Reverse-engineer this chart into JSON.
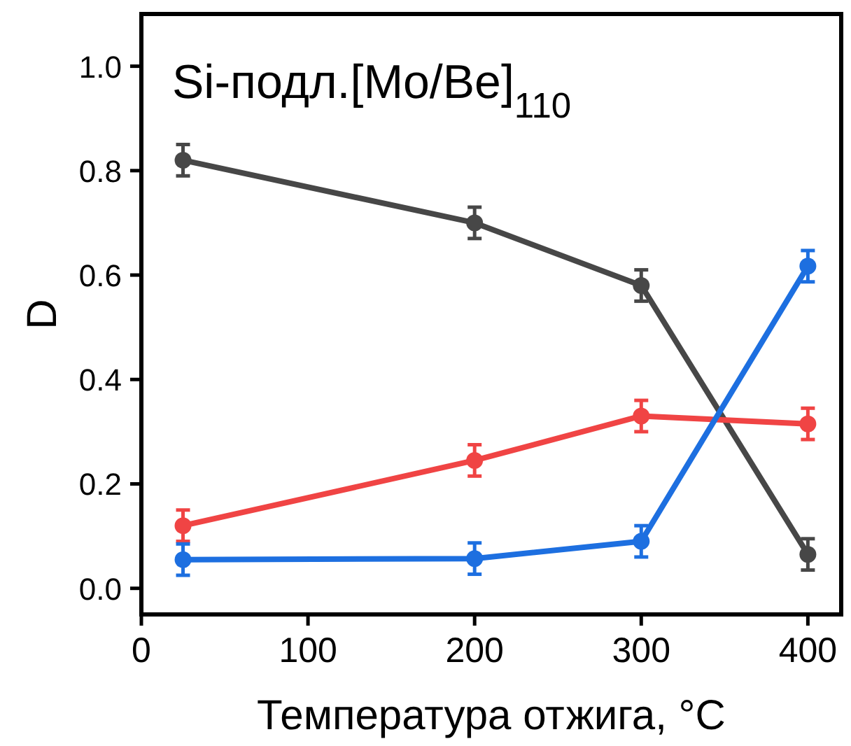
{
  "chart_data": {
    "type": "line",
    "title": "Si-подл.[Mo/Be]$_{110}$",
    "xlabel": "Температура отжига, °C",
    "ylabel": "D",
    "x": [
      25,
      200,
      300,
      400
    ],
    "series": [
      {
        "color": "#474747",
        "values": [
          0.82,
          0.7,
          0.58,
          0.065
        ],
        "errors": [
          0.03,
          0.03,
          0.03,
          0.03
        ]
      },
      {
        "color": "#f04444",
        "values": [
          0.12,
          0.245,
          0.33,
          0.315
        ],
        "errors": [
          0.03,
          0.03,
          0.03,
          0.03
        ]
      },
      {
        "color": "#1d6fe0",
        "values": [
          0.055,
          0.057,
          0.09,
          0.617
        ],
        "errors": [
          0.03,
          0.03,
          0.03,
          0.03
        ]
      }
    ],
    "xlim": [
      0,
      420
    ],
    "ylim": [
      -0.05,
      1.1
    ],
    "xticks": [
      0,
      100,
      200,
      300,
      400
    ],
    "yticks": [
      {
        "value": 0,
        "label": "0.0"
      },
      {
        "value": 0.2,
        "label": "0.2"
      },
      {
        "value": 0.4,
        "label": "0.4"
      },
      {
        "value": 0.6,
        "label": "0.6"
      },
      {
        "value": 0.8,
        "label": "0.8"
      },
      {
        "value": 1,
        "label": "1.0"
      }
    ],
    "marker": "circle",
    "line_style": "solid",
    "grid": false
  }
}
